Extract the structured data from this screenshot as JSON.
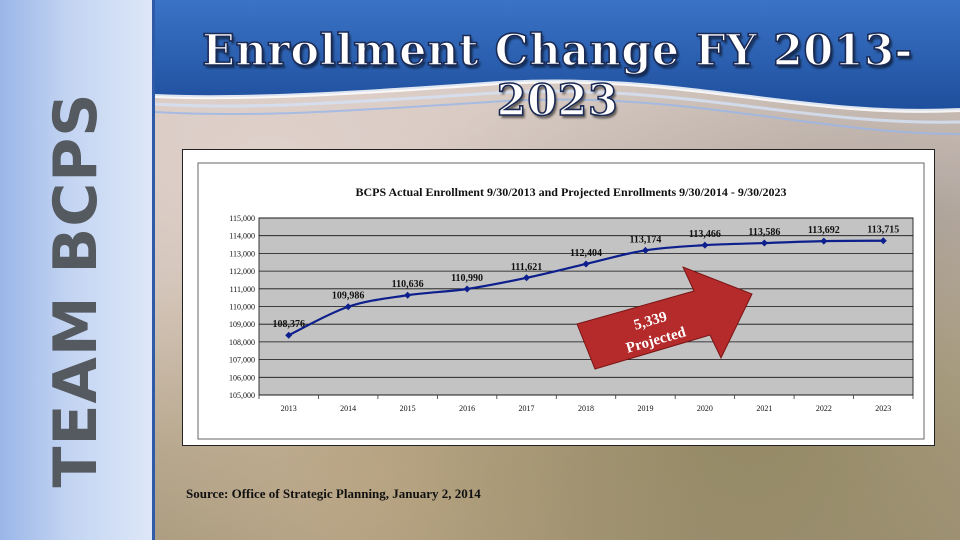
{
  "sidebar": {
    "label": "TEAM BCPS"
  },
  "slide": {
    "title": "Enrollment Change FY 2013-2023"
  },
  "chart_data": {
    "type": "line",
    "title": "BCPS Actual Enrollment 9/30/2013 and Projected Enrollments 9/30/2014 - 9/30/2023",
    "xlabel": "",
    "ylabel": "",
    "categories": [
      "2013",
      "2014",
      "2015",
      "2016",
      "2017",
      "2018",
      "2019",
      "2020",
      "2021",
      "2022",
      "2023"
    ],
    "series": [
      {
        "values": [
          108376,
          109986,
          110636,
          110990,
          111621,
          112404,
          113174,
          113466,
          113586,
          113692,
          113715
        ]
      }
    ],
    "data_labels": [
      "108,376",
      "109,986",
      "110,636",
      "110,990",
      "111,621",
      "112,404",
      "113,174",
      "113,466",
      "113,586",
      "113,692",
      "113,715"
    ],
    "ylim": [
      105000,
      115000
    ],
    "yticks": [
      105000,
      106000,
      107000,
      108000,
      109000,
      110000,
      111000,
      112000,
      113000,
      114000,
      115000
    ],
    "ytick_labels": [
      "105,000",
      "106,000",
      "107,000",
      "108,000",
      "109,000",
      "110,000",
      "111,000",
      "112,000",
      "113,000",
      "114,000",
      "115,000"
    ],
    "grid": true,
    "legend": "none",
    "line_color": "#0d1f8c",
    "plot_background": "#c3c3c3",
    "annotation": {
      "line1": "5,339",
      "line2": "Projected",
      "color": "#b52a2a"
    }
  },
  "source_note": "Source:  Office of Strategic Planning, January 2, 2014"
}
